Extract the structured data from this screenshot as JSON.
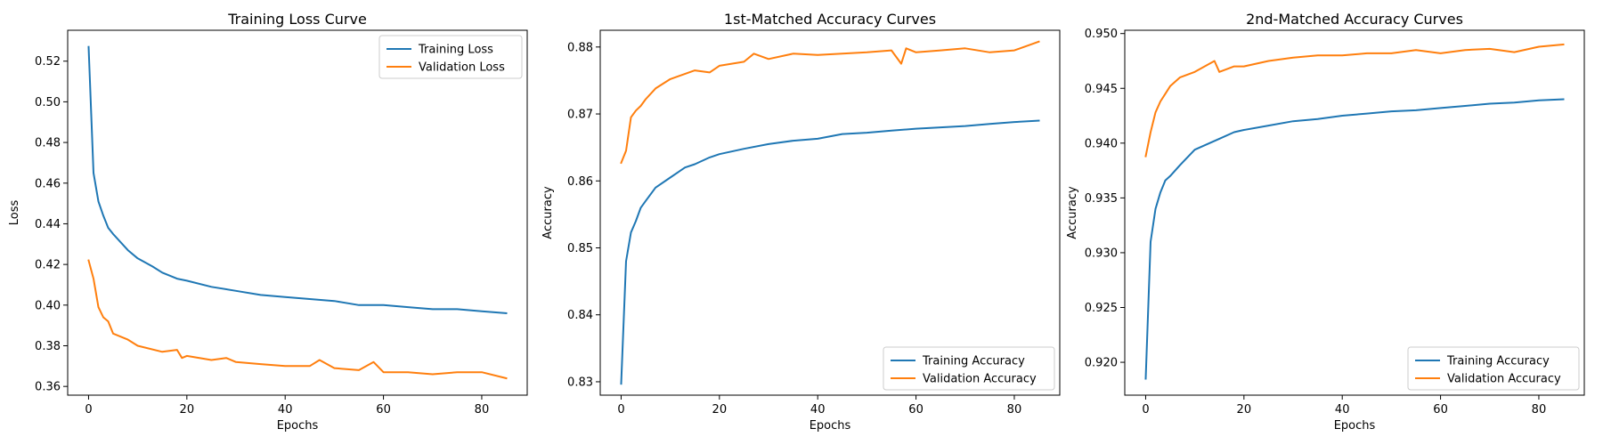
{
  "figure": {
    "colors": {
      "training": "#1f77b4",
      "validation": "#ff7f0e",
      "axes": "#000000"
    }
  },
  "chart_data": [
    {
      "type": "line",
      "title": "Training Loss Curve",
      "xlabel": "Epochs",
      "ylabel": "Loss",
      "xlim": [
        -4.25,
        89.25
      ],
      "ylim": [
        0.3557,
        0.5352
      ],
      "xticks": [
        0,
        20,
        40,
        60,
        80
      ],
      "xtick_labels": [
        "0",
        "20",
        "40",
        "60",
        "80"
      ],
      "yticks": [
        0.36,
        0.38,
        0.4,
        0.42,
        0.44,
        0.46,
        0.48,
        0.5,
        0.52
      ],
      "ytick_labels": [
        "0.36",
        "0.38",
        "0.40",
        "0.42",
        "0.44",
        "0.46",
        "0.48",
        "0.50",
        "0.52"
      ],
      "legend": "upper right",
      "grid": false,
      "series": [
        {
          "name": "Training Loss",
          "color": "#1f77b4",
          "x": [
            0,
            1,
            2,
            3,
            4,
            5,
            8,
            10,
            13,
            15,
            18,
            20,
            25,
            30,
            35,
            40,
            45,
            50,
            55,
            60,
            65,
            70,
            75,
            80,
            85
          ],
          "y": [
            0.527,
            0.465,
            0.451,
            0.444,
            0.438,
            0.435,
            0.427,
            0.423,
            0.419,
            0.416,
            0.413,
            0.412,
            0.409,
            0.407,
            0.405,
            0.404,
            0.403,
            0.402,
            0.4,
            0.4,
            0.399,
            0.398,
            0.398,
            0.397,
            0.396
          ]
        },
        {
          "name": "Validation Loss",
          "color": "#ff7f0e",
          "x": [
            0,
            1,
            2,
            3,
            4,
            5,
            8,
            10,
            15,
            18,
            19,
            20,
            25,
            28,
            30,
            35,
            40,
            45,
            47,
            50,
            55,
            58,
            60,
            65,
            70,
            75,
            80,
            85
          ],
          "y": [
            0.422,
            0.413,
            0.399,
            0.394,
            0.392,
            0.386,
            0.383,
            0.38,
            0.377,
            0.378,
            0.374,
            0.375,
            0.373,
            0.374,
            0.372,
            0.371,
            0.37,
            0.37,
            0.373,
            0.369,
            0.368,
            0.372,
            0.367,
            0.367,
            0.366,
            0.367,
            0.367,
            0.364
          ]
        }
      ]
    },
    {
      "type": "line",
      "title": "1st-Matched Accuracy Curves",
      "xlabel": "Epochs",
      "ylabel": "Accuracy",
      "xlim": [
        -4.25,
        89.25
      ],
      "ylim": [
        0.828,
        0.8825
      ],
      "xticks": [
        0,
        20,
        40,
        60,
        80
      ],
      "xtick_labels": [
        "0",
        "20",
        "40",
        "60",
        "80"
      ],
      "yticks": [
        0.83,
        0.84,
        0.85,
        0.86,
        0.87,
        0.88
      ],
      "ytick_labels": [
        "0.83",
        "0.84",
        "0.85",
        "0.86",
        "0.87",
        "0.88"
      ],
      "legend": "lower right",
      "grid": false,
      "series": [
        {
          "name": "Training Accuracy",
          "color": "#1f77b4",
          "x": [
            0,
            1,
            2,
            3,
            4,
            5,
            7,
            10,
            13,
            15,
            18,
            20,
            25,
            30,
            35,
            40,
            45,
            50,
            55,
            60,
            65,
            70,
            75,
            80,
            85
          ],
          "y": [
            0.8297,
            0.848,
            0.8523,
            0.854,
            0.856,
            0.857,
            0.859,
            0.8605,
            0.862,
            0.8625,
            0.8635,
            0.864,
            0.8648,
            0.8655,
            0.866,
            0.8663,
            0.867,
            0.8672,
            0.8675,
            0.8678,
            0.868,
            0.8682,
            0.8685,
            0.8688,
            0.869
          ]
        },
        {
          "name": "Validation Accuracy",
          "color": "#ff7f0e",
          "x": [
            0,
            1,
            2,
            3,
            4,
            5,
            7,
            10,
            15,
            18,
            20,
            25,
            27,
            30,
            35,
            40,
            45,
            50,
            55,
            57,
            58,
            60,
            65,
            70,
            75,
            80,
            85
          ],
          "y": [
            0.8627,
            0.8645,
            0.8695,
            0.8705,
            0.8712,
            0.8722,
            0.8738,
            0.8752,
            0.8765,
            0.8762,
            0.8772,
            0.8778,
            0.879,
            0.8782,
            0.879,
            0.8788,
            0.879,
            0.8792,
            0.8795,
            0.8775,
            0.8798,
            0.8792,
            0.8795,
            0.8798,
            0.8792,
            0.8795,
            0.8808
          ]
        }
      ]
    },
    {
      "type": "line",
      "title": "2nd-Matched Accuracy Curves",
      "xlabel": "Epochs",
      "ylabel": "Accuracy",
      "xlim": [
        -4.25,
        89.25
      ],
      "ylim": [
        0.917,
        0.9503
      ],
      "xticks": [
        0,
        20,
        40,
        60,
        80
      ],
      "xtick_labels": [
        "0",
        "20",
        "40",
        "60",
        "80"
      ],
      "yticks": [
        0.92,
        0.925,
        0.93,
        0.935,
        0.94,
        0.945,
        0.95
      ],
      "ytick_labels": [
        "0.920",
        "0.925",
        "0.930",
        "0.935",
        "0.940",
        "0.945",
        "0.950"
      ],
      "legend": "lower right",
      "grid": false,
      "series": [
        {
          "name": "Training Accuracy",
          "color": "#1f77b4",
          "x": [
            0,
            1,
            2,
            3,
            4,
            5,
            7,
            10,
            13,
            15,
            18,
            20,
            25,
            30,
            35,
            40,
            45,
            50,
            55,
            60,
            65,
            70,
            75,
            80,
            85
          ],
          "y": [
            0.9185,
            0.931,
            0.934,
            0.9355,
            0.9366,
            0.937,
            0.938,
            0.9394,
            0.94,
            0.9404,
            0.941,
            0.9412,
            0.9416,
            0.942,
            0.9422,
            0.9425,
            0.9427,
            0.9429,
            0.943,
            0.9432,
            0.9434,
            0.9436,
            0.9437,
            0.9439,
            0.944
          ]
        },
        {
          "name": "Validation Accuracy",
          "color": "#ff7f0e",
          "x": [
            0,
            1,
            2,
            3,
            4,
            5,
            7,
            10,
            14,
            15,
            18,
            20,
            25,
            30,
            35,
            40,
            45,
            50,
            55,
            60,
            65,
            70,
            75,
            80,
            85
          ],
          "y": [
            0.9388,
            0.941,
            0.9428,
            0.9438,
            0.9445,
            0.9452,
            0.946,
            0.9465,
            0.9475,
            0.9465,
            0.947,
            0.947,
            0.9475,
            0.9478,
            0.948,
            0.948,
            0.9482,
            0.9482,
            0.9485,
            0.9482,
            0.9485,
            0.9486,
            0.9483,
            0.9488,
            0.949
          ]
        }
      ]
    }
  ]
}
